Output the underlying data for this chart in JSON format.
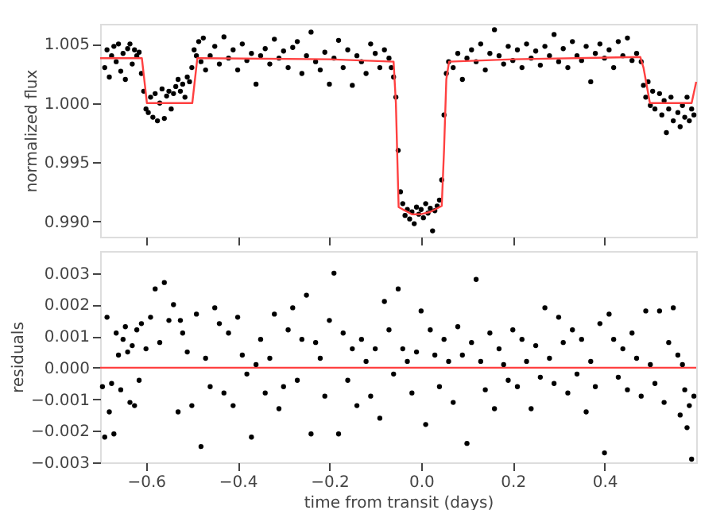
{
  "chart_data": [
    {
      "type": "scatter",
      "ylabel": "normalized flux",
      "xlim": [
        -0.7,
        0.6
      ],
      "ylim": [
        0.9887,
        1.0067
      ],
      "grid": false,
      "tick_labels": "y",
      "xticks": [
        {
          "value": -0.6,
          "label": null
        },
        {
          "value": -0.4,
          "label": null
        },
        {
          "value": -0.2,
          "label": null
        },
        {
          "value": 0,
          "label": null
        },
        {
          "value": 0.2,
          "label": null
        },
        {
          "value": 0.4,
          "label": null
        }
      ],
      "yticks": [
        {
          "value": 0.99,
          "label": "0.990"
        },
        {
          "value": 0.995,
          "label": "0.995"
        },
        {
          "value": 1.0,
          "label": "1.000"
        },
        {
          "value": 1.005,
          "label": "1.005"
        }
      ],
      "series": [
        {
          "marker": "circle",
          "color": "#000000",
          "x": [
            -0.69,
            -0.685,
            -0.68,
            -0.675,
            -0.67,
            -0.665,
            -0.66,
            -0.655,
            -0.65,
            -0.645,
            -0.64,
            -0.635,
            -0.63,
            -0.625,
            -0.62,
            -0.615,
            -0.61,
            -0.605,
            -0.6,
            -0.595,
            -0.59,
            -0.585,
            -0.58,
            -0.575,
            -0.57,
            -0.565,
            -0.56,
            -0.555,
            -0.55,
            -0.545,
            -0.54,
            -0.535,
            -0.53,
            -0.525,
            -0.52,
            -0.515,
            -0.51,
            -0.505,
            -0.5,
            -0.495,
            -0.49,
            -0.485,
            -0.48,
            -0.475,
            -0.47,
            -0.46,
            -0.45,
            -0.44,
            -0.43,
            -0.42,
            -0.41,
            -0.4,
            -0.39,
            -0.38,
            -0.37,
            -0.36,
            -0.35,
            -0.34,
            -0.33,
            -0.32,
            -0.31,
            -0.3,
            -0.29,
            -0.28,
            -0.27,
            -0.26,
            -0.25,
            -0.24,
            -0.23,
            -0.22,
            -0.21,
            -0.2,
            -0.19,
            -0.18,
            -0.17,
            -0.16,
            -0.15,
            -0.14,
            -0.13,
            -0.12,
            -0.11,
            -0.1,
            -0.09,
            -0.08,
            -0.07,
            -0.065,
            -0.06,
            -0.055,
            -0.05,
            -0.045,
            -0.04,
            -0.035,
            -0.03,
            -0.025,
            -0.02,
            -0.015,
            -0.01,
            -0.005,
            0.0,
            0.005,
            0.01,
            0.015,
            0.02,
            0.025,
            0.03,
            0.035,
            0.04,
            0.045,
            0.05,
            0.055,
            0.06,
            0.07,
            0.08,
            0.09,
            0.1,
            0.11,
            0.12,
            0.13,
            0.14,
            0.15,
            0.16,
            0.17,
            0.18,
            0.19,
            0.2,
            0.21,
            0.22,
            0.23,
            0.24,
            0.25,
            0.26,
            0.27,
            0.28,
            0.29,
            0.3,
            0.31,
            0.32,
            0.33,
            0.34,
            0.35,
            0.36,
            0.37,
            0.38,
            0.39,
            0.4,
            0.41,
            0.42,
            0.43,
            0.44,
            0.45,
            0.46,
            0.47,
            0.48,
            0.485,
            0.49,
            0.495,
            0.5,
            0.505,
            0.51,
            0.52,
            0.525,
            0.53,
            0.535,
            0.54,
            0.545,
            0.55,
            0.56,
            0.565,
            0.57,
            0.575,
            0.58,
            0.585,
            0.59,
            0.595
          ],
          "values": [
            1.003,
            1.0045,
            1.0022,
            1.004,
            1.0048,
            1.0035,
            1.005,
            1.0027,
            1.0042,
            1.002,
            1.0046,
            1.005,
            1.0033,
            1.0045,
            1.004,
            1.0043,
            1.0025,
            1.001,
            0.9995,
            0.9992,
            1.0005,
            0.9988,
            1.0008,
            0.9985,
            1.0,
            1.0012,
            0.9987,
            1.0006,
            1.001,
            0.9995,
            1.0008,
            1.0014,
            1.002,
            1.001,
            1.0016,
            1.0005,
            1.0022,
            1.0018,
            1.003,
            1.0045,
            1.004,
            1.0052,
            1.0035,
            1.0055,
            1.0028,
            1.004,
            1.0048,
            1.0033,
            1.0056,
            1.0038,
            1.0045,
            1.0028,
            1.005,
            1.0036,
            1.0042,
            1.0016,
            1.004,
            1.0046,
            1.0033,
            1.0054,
            1.0038,
            1.0044,
            1.003,
            1.0047,
            1.0052,
            1.0025,
            1.004,
            1.006,
            1.0035,
            1.0028,
            1.0043,
            1.0016,
            1.0038,
            1.0053,
            1.003,
            1.0045,
            1.0015,
            1.004,
            1.0035,
            1.0025,
            1.005,
            1.0042,
            1.003,
            1.0045,
            1.0038,
            1.003,
            1.0022,
            1.0005,
            0.996,
            0.9925,
            0.9915,
            0.9905,
            0.991,
            0.9902,
            0.9908,
            0.9898,
            0.9912,
            0.9906,
            0.991,
            0.9903,
            0.9915,
            0.9907,
            0.9911,
            0.9892,
            0.9909,
            0.9913,
            0.9918,
            0.9935,
            0.999,
            1.0025,
            1.0035,
            1.003,
            1.0042,
            1.002,
            1.0038,
            1.0045,
            1.0035,
            1.005,
            1.0028,
            1.0042,
            1.0062,
            1.004,
            1.0033,
            1.0048,
            1.0036,
            1.0045,
            1.003,
            1.005,
            1.0038,
            1.0044,
            1.0032,
            1.0048,
            1.004,
            1.0058,
            1.0035,
            1.0046,
            1.003,
            1.0052,
            1.004,
            1.0036,
            1.0048,
            1.0018,
            1.0042,
            1.005,
            1.0038,
            1.0045,
            1.003,
            1.0052,
            1.004,
            1.0055,
            1.0036,
            1.0042,
            1.0035,
            1.0015,
            1.0005,
            1.0018,
            0.9998,
            1.001,
            0.9995,
            1.0008,
            0.999,
            1.0002,
            0.9975,
            0.9995,
            1.0005,
            0.9985,
            0.9992,
            0.998,
            0.9998,
            0.9988,
            1.0005,
            0.9985,
            0.9995,
            0.999
          ]
        },
        {
          "type": "line",
          "marker": "none",
          "color": "#ff4040",
          "x": [
            -0.7,
            -0.609,
            -0.598,
            -0.499,
            -0.488,
            -0.2,
            -0.06,
            -0.055,
            -0.049,
            -0.02,
            0.0,
            0.02,
            0.045,
            0.05,
            0.055,
            0.061,
            0.2,
            0.478,
            0.485,
            0.499,
            0.59,
            0.6
          ],
          "values": [
            1.0038,
            1.0038,
            1.0,
            1.0,
            1.0038,
            1.0037,
            1.0035,
            1.0,
            0.9912,
            0.9906,
            0.9906,
            0.9908,
            0.9913,
            0.996,
            1.002,
            1.0035,
            1.0037,
            1.0039,
            1.003,
            1.0,
            1.0,
            1.0018
          ]
        }
      ]
    },
    {
      "type": "scatter",
      "xlabel": "time from transit (days)",
      "ylabel": "residuals",
      "xlim": [
        -0.7,
        0.6
      ],
      "ylim": [
        -0.003,
        0.0037
      ],
      "grid": false,
      "xticks": [
        {
          "value": -0.6,
          "label": "−0.6"
        },
        {
          "value": -0.4,
          "label": "−0.4"
        },
        {
          "value": -0.2,
          "label": "−0.2"
        },
        {
          "value": 0,
          "label": "0.0"
        },
        {
          "value": 0.2,
          "label": "0.2"
        },
        {
          "value": 0.4,
          "label": "0.4"
        }
      ],
      "yticks": [
        {
          "value": -0.003,
          "label": "−0.003"
        },
        {
          "value": -0.002,
          "label": "−0.002"
        },
        {
          "value": -0.001,
          "label": "−0.001"
        },
        {
          "value": 0,
          "label": "0.000"
        },
        {
          "value": 0.001,
          "label": "0.001"
        },
        {
          "value": 0.002,
          "label": "0.002"
        },
        {
          "value": 0.003,
          "label": "0.003"
        }
      ],
      "ref_lines": [
        {
          "axis": "y",
          "value": 0,
          "color": "#ff4040"
        }
      ],
      "series": [
        {
          "marker": "circle",
          "color": "#000000",
          "x": [
            -0.695,
            -0.69,
            -0.685,
            -0.68,
            -0.675,
            -0.67,
            -0.665,
            -0.66,
            -0.655,
            -0.65,
            -0.645,
            -0.64,
            -0.635,
            -0.63,
            -0.625,
            -0.62,
            -0.615,
            -0.61,
            -0.6,
            -0.59,
            -0.58,
            -0.57,
            -0.56,
            -0.55,
            -0.54,
            -0.53,
            -0.525,
            -0.52,
            -0.51,
            -0.5,
            -0.49,
            -0.48,
            -0.47,
            -0.46,
            -0.45,
            -0.44,
            -0.43,
            -0.42,
            -0.41,
            -0.4,
            -0.39,
            -0.38,
            -0.37,
            -0.36,
            -0.35,
            -0.34,
            -0.33,
            -0.32,
            -0.31,
            -0.3,
            -0.29,
            -0.28,
            -0.27,
            -0.26,
            -0.25,
            -0.24,
            -0.23,
            -0.22,
            -0.21,
            -0.2,
            -0.19,
            -0.18,
            -0.17,
            -0.16,
            -0.15,
            -0.14,
            -0.13,
            -0.12,
            -0.11,
            -0.1,
            -0.09,
            -0.08,
            -0.07,
            -0.06,
            -0.05,
            -0.04,
            -0.03,
            -0.02,
            -0.01,
            0.0,
            0.01,
            0.02,
            0.03,
            0.04,
            0.05,
            0.06,
            0.07,
            0.08,
            0.09,
            0.1,
            0.11,
            0.12,
            0.13,
            0.14,
            0.15,
            0.16,
            0.17,
            0.18,
            0.19,
            0.2,
            0.21,
            0.22,
            0.23,
            0.24,
            0.25,
            0.26,
            0.27,
            0.28,
            0.29,
            0.3,
            0.31,
            0.32,
            0.33,
            0.34,
            0.35,
            0.36,
            0.37,
            0.38,
            0.39,
            0.4,
            0.41,
            0.42,
            0.43,
            0.44,
            0.45,
            0.46,
            0.47,
            0.48,
            0.49,
            0.5,
            0.51,
            0.52,
            0.53,
            0.54,
            0.55,
            0.56,
            0.565,
            0.57,
            0.575,
            0.58,
            0.585,
            0.59,
            0.595
          ],
          "values": [
            -0.0006,
            -0.0022,
            0.0016,
            -0.0014,
            -0.0005,
            -0.0021,
            0.0011,
            0.0004,
            -0.0007,
            0.0009,
            0.0013,
            0.0005,
            -0.0011,
            0.0007,
            -0.0012,
            0.0012,
            -0.0004,
            0.0014,
            0.0006,
            0.0016,
            0.0025,
            0.0008,
            0.0027,
            0.0015,
            0.002,
            -0.0014,
            0.0015,
            0.0011,
            0.0005,
            -0.0012,
            0.0017,
            -0.0025,
            0.0003,
            -0.0006,
            0.0019,
            0.0014,
            -0.0008,
            0.0011,
            -0.0012,
            0.0016,
            0.0004,
            -0.0002,
            -0.0022,
            0.0001,
            0.0009,
            -0.0008,
            0.0003,
            0.0017,
            -0.0013,
            -0.0006,
            0.0012,
            0.0019,
            -0.0004,
            0.0009,
            0.0023,
            -0.0021,
            0.0008,
            0.0003,
            -0.0009,
            0.0015,
            0.003,
            -0.0021,
            0.0011,
            -0.0004,
            0.0006,
            -0.0012,
            0.0009,
            0.0002,
            -0.0009,
            0.0006,
            -0.0016,
            0.0021,
            0.0012,
            -0.0002,
            0.0025,
            0.0006,
            0.0002,
            -0.0008,
            0.0005,
            0.0018,
            -0.0018,
            0.0012,
            0.0004,
            -0.0006,
            0.0009,
            0.0002,
            -0.0011,
            0.0013,
            0.0004,
            -0.0024,
            0.0008,
            0.0028,
            0.0002,
            -0.0007,
            0.0011,
            -0.0013,
            0.0006,
            0.0001,
            -0.0004,
            0.0012,
            -0.0006,
            0.0009,
            0.0002,
            -0.0013,
            0.0007,
            -0.0003,
            0.0019,
            0.0003,
            -0.0005,
            0.0016,
            0.0008,
            -0.0008,
            0.0012,
            -0.0002,
            0.0009,
            -0.0014,
            0.0002,
            -0.0006,
            0.0014,
            -0.0027,
            0.0017,
            0.0009,
            -0.0003,
            0.0006,
            -0.0007,
            0.0011,
            0.0003,
            -0.0009,
            0.0018,
            0.0001,
            -0.0005,
            0.0018,
            -0.0011,
            0.0008,
            0.0019,
            0.0004,
            -0.0015,
            0.0001,
            -0.0007,
            -0.0019,
            -0.0012,
            -0.0029,
            -0.0009
          ]
        }
      ]
    }
  ]
}
